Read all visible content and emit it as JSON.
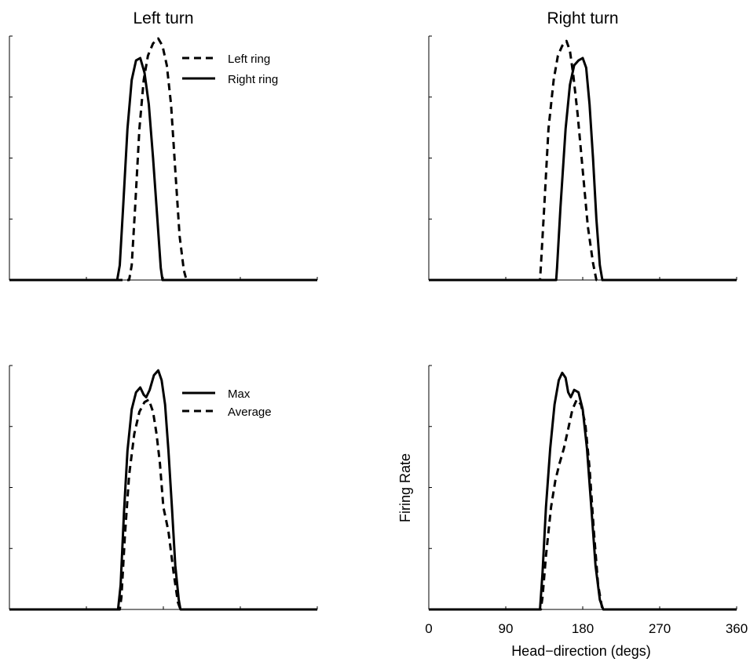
{
  "chart_data": [
    {
      "type": "line",
      "title": "Left turn",
      "xlabel": "",
      "ylabel": "",
      "xlim": [
        0,
        360
      ],
      "ylim": [
        0,
        1
      ],
      "x_ticks_labeled": false,
      "legend": {
        "placement": "top-right"
      },
      "series": [
        {
          "name": "Left ring",
          "style": "dashed",
          "points": [
            [
              0,
              0
            ],
            [
              140,
              0
            ],
            [
              143,
              0.06
            ],
            [
              147,
              0.3
            ],
            [
              152,
              0.62
            ],
            [
              157,
              0.82
            ],
            [
              162,
              0.92
            ],
            [
              168,
              0.97
            ],
            [
              174,
              0.99
            ],
            [
              179,
              0.96
            ],
            [
              184,
              0.88
            ],
            [
              189,
              0.72
            ],
            [
              194,
              0.45
            ],
            [
              199,
              0.18
            ],
            [
              204,
              0.04
            ],
            [
              207,
              0
            ],
            [
              360,
              0
            ]
          ]
        },
        {
          "name": "Right ring",
          "style": "solid",
          "points": [
            [
              0,
              0
            ],
            [
              126,
              0
            ],
            [
              129,
              0.06
            ],
            [
              133,
              0.3
            ],
            [
              138,
              0.62
            ],
            [
              143,
              0.82
            ],
            [
              148,
              0.9
            ],
            [
              153,
              0.91
            ],
            [
              158,
              0.85
            ],
            [
              163,
              0.72
            ],
            [
              168,
              0.5
            ],
            [
              173,
              0.25
            ],
            [
              177,
              0.05
            ],
            [
              179,
              0
            ],
            [
              360,
              0
            ]
          ]
        }
      ]
    },
    {
      "type": "line",
      "title": "Right turn",
      "xlabel": "",
      "ylabel": "",
      "xlim": [
        0,
        360
      ],
      "ylim": [
        0,
        1
      ],
      "x_ticks_labeled": false,
      "series": [
        {
          "name": "Left ring",
          "style": "dashed",
          "points": [
            [
              0,
              0
            ],
            [
              130,
              0
            ],
            [
              131,
              0.05
            ],
            [
              135,
              0.3
            ],
            [
              140,
              0.62
            ],
            [
              146,
              0.82
            ],
            [
              151,
              0.92
            ],
            [
              156,
              0.96
            ],
            [
              161,
              0.98
            ],
            [
              165,
              0.94
            ],
            [
              169,
              0.84
            ],
            [
              174,
              0.68
            ],
            [
              180,
              0.45
            ],
            [
              186,
              0.22
            ],
            [
              192,
              0.07
            ],
            [
              196,
              0
            ],
            [
              360,
              0
            ]
          ]
        },
        {
          "name": "Right ring",
          "style": "solid",
          "points": [
            [
              0,
              0
            ],
            [
              149,
              0
            ],
            [
              150,
              0.05
            ],
            [
              154,
              0.3
            ],
            [
              160,
              0.62
            ],
            [
              165,
              0.8
            ],
            [
              170,
              0.88
            ],
            [
              175,
              0.9
            ],
            [
              180,
              0.91
            ],
            [
              184,
              0.87
            ],
            [
              188,
              0.72
            ],
            [
              192,
              0.5
            ],
            [
              196,
              0.25
            ],
            [
              200,
              0.06
            ],
            [
              203,
              0
            ],
            [
              360,
              0
            ]
          ]
        }
      ]
    },
    {
      "type": "line",
      "title": "",
      "xlabel": "",
      "ylabel": "",
      "xlim": [
        0,
        360
      ],
      "ylim": [
        0,
        1
      ],
      "x_ticks_labeled": false,
      "legend": {
        "placement": "top-right"
      },
      "series": [
        {
          "name": "Max",
          "style": "solid",
          "points": [
            [
              0,
              0
            ],
            [
              127,
              0
            ],
            [
              130,
              0.1
            ],
            [
              134,
              0.4
            ],
            [
              138,
              0.65
            ],
            [
              143,
              0.82
            ],
            [
              148,
              0.89
            ],
            [
              153,
              0.91
            ],
            [
              157,
              0.88
            ],
            [
              160,
              0.87
            ],
            [
              164,
              0.9
            ],
            [
              169,
              0.96
            ],
            [
              174,
              0.98
            ],
            [
              178,
              0.94
            ],
            [
              182,
              0.84
            ],
            [
              186,
              0.65
            ],
            [
              190,
              0.42
            ],
            [
              194,
              0.18
            ],
            [
              198,
              0.04
            ],
            [
              200,
              0
            ],
            [
              360,
              0
            ]
          ]
        },
        {
          "name": "Average",
          "style": "dashed",
          "points": [
            [
              0,
              0
            ],
            [
              129,
              0
            ],
            [
              131,
              0.05
            ],
            [
              135,
              0.3
            ],
            [
              140,
              0.55
            ],
            [
              146,
              0.72
            ],
            [
              152,
              0.81
            ],
            [
              158,
              0.85
            ],
            [
              163,
              0.86
            ],
            [
              168,
              0.81
            ],
            [
              172,
              0.72
            ],
            [
              176,
              0.6
            ],
            [
              180,
              0.42
            ],
            [
              186,
              0.32
            ],
            [
              192,
              0.15
            ],
            [
              197,
              0.03
            ],
            [
              200,
              0
            ],
            [
              360,
              0
            ]
          ]
        }
      ]
    },
    {
      "type": "line",
      "title": "",
      "xlabel": "Head−direction (degs)",
      "ylabel": "Firing Rate",
      "xlim": [
        0,
        360
      ],
      "ylim": [
        0,
        1
      ],
      "xticks": [
        0,
        90,
        180,
        270,
        360
      ],
      "xticklabels": [
        "0",
        "90",
        "180",
        "270",
        "360"
      ],
      "series": [
        {
          "name": "Max",
          "style": "solid",
          "points": [
            [
              0,
              0
            ],
            [
              130,
              0
            ],
            [
              133,
              0.15
            ],
            [
              137,
              0.42
            ],
            [
              142,
              0.66
            ],
            [
              147,
              0.84
            ],
            [
              152,
              0.94
            ],
            [
              156,
              0.97
            ],
            [
              160,
              0.95
            ],
            [
              163,
              0.89
            ],
            [
              166,
              0.87
            ],
            [
              170,
              0.9
            ],
            [
              175,
              0.89
            ],
            [
              180,
              0.82
            ],
            [
              185,
              0.66
            ],
            [
              190,
              0.42
            ],
            [
              195,
              0.18
            ],
            [
              200,
              0.04
            ],
            [
              204,
              0
            ],
            [
              360,
              0
            ]
          ]
        },
        {
          "name": "Average",
          "style": "dashed",
          "points": [
            [
              0,
              0
            ],
            [
              131,
              0
            ],
            [
              133,
              0.05
            ],
            [
              137,
              0.22
            ],
            [
              143,
              0.42
            ],
            [
              148,
              0.53
            ],
            [
              153,
              0.6
            ],
            [
              158,
              0.66
            ],
            [
              163,
              0.74
            ],
            [
              168,
              0.82
            ],
            [
              173,
              0.86
            ],
            [
              178,
              0.84
            ],
            [
              183,
              0.76
            ],
            [
              188,
              0.58
            ],
            [
              193,
              0.32
            ],
            [
              198,
              0.1
            ],
            [
              203,
              0
            ],
            [
              360,
              0
            ]
          ]
        }
      ]
    }
  ]
}
